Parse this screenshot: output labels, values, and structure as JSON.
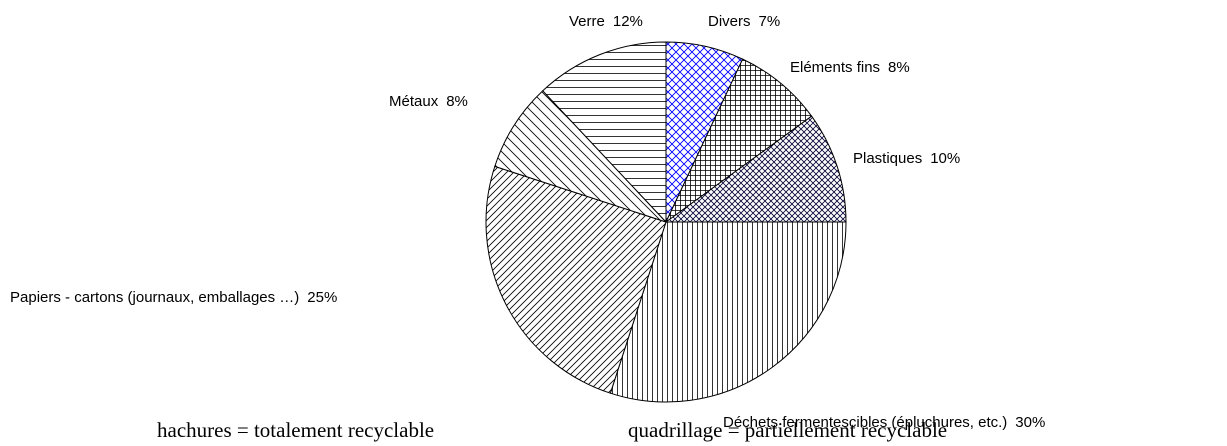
{
  "chart_data": {
    "type": "pie",
    "categories": [
      "Divers",
      "Eléments fins",
      "Plastiques",
      "Déchets fermentescibles (épluchures, etc.)",
      "Papiers - cartons (journaux, emballages …)",
      "Métaux",
      "Verre"
    ],
    "values": [
      7,
      8,
      10,
      30,
      25,
      8,
      12
    ],
    "value_labels": [
      "7%",
      "8%",
      "10%",
      "30%",
      "25%",
      "8%",
      "12%"
    ],
    "annotations": [
      "hachures = totalement recyclable",
      "quadrillage = partiellement recyclable"
    ]
  }
}
